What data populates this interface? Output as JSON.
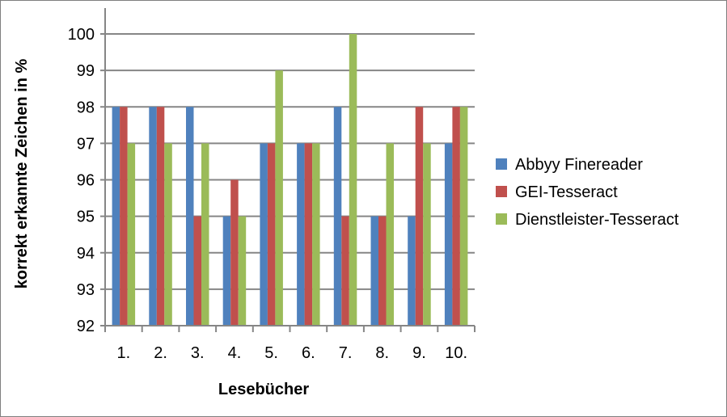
{
  "chart_data": {
    "type": "bar",
    "title": "",
    "xlabel": "Lesebücher",
    "ylabel": "korrekt erkannte Zeichen in %",
    "categories": [
      "1.",
      "2.",
      "3.",
      "4.",
      "5.",
      "6.",
      "7.",
      "8.",
      "9.",
      "10."
    ],
    "ylim": [
      92,
      100
    ],
    "yticks": [
      92,
      93,
      94,
      95,
      96,
      97,
      98,
      99,
      100
    ],
    "grid": true,
    "legend_position": "right",
    "series": [
      {
        "name": "Abbyy Finereader",
        "color": "#4f81bd",
        "values": [
          98,
          98,
          98,
          95,
          97,
          97,
          98,
          95,
          95,
          97
        ]
      },
      {
        "name": "GEI-Tesseract",
        "color": "#c0504d",
        "values": [
          98,
          98,
          95,
          96,
          97,
          97,
          95,
          95,
          98,
          98
        ]
      },
      {
        "name": "Dienstleister-Tesseract",
        "color": "#9bbb59",
        "values": [
          97,
          97,
          97,
          95,
          99,
          97,
          100,
          97,
          97,
          98
        ]
      }
    ]
  }
}
